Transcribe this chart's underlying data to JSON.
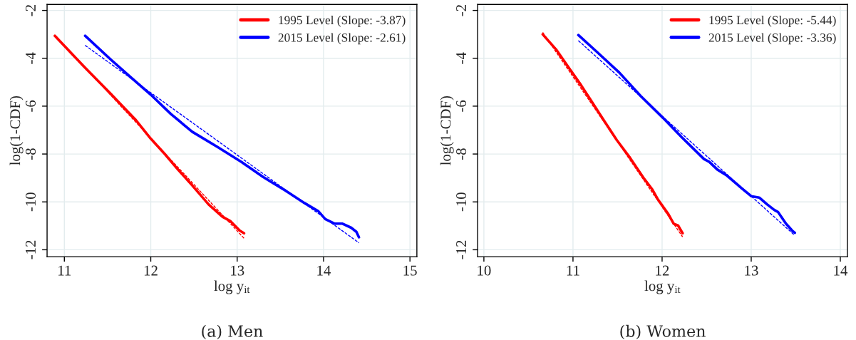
{
  "chart_data": [
    {
      "type": "line",
      "xlabel": "log y$_{it}$",
      "ylabel": "log(1-CDF)",
      "annotations": [
        "(a) Men"
      ],
      "xlim": [
        10.8,
        15.08
      ],
      "ylim": [
        -12.29,
        -1.75
      ],
      "xticks": [
        11,
        12,
        13,
        14,
        15
      ],
      "yticks": [
        -12,
        -10,
        -8,
        -6,
        -4,
        -2
      ],
      "grid": true,
      "legend": "top right",
      "line_style": "solid",
      "marker": "none",
      "series": [
        {
          "name": "1995 Level (Slope: -3.87)",
          "color": "#ff0000",
          "x": [
            10.89,
            11.22,
            11.53,
            11.82,
            12.0,
            12.16,
            12.32,
            12.48,
            12.67,
            12.83,
            12.92,
            13.03,
            13.08
          ],
          "values": [
            -3.06,
            -4.32,
            -5.46,
            -6.55,
            -7.36,
            -7.99,
            -8.67,
            -9.31,
            -10.11,
            -10.62,
            -10.8,
            -11.2,
            -11.31
          ]
        },
        {
          "name": "2015 Level (Slope: -2.61)",
          "color": "#0000ff",
          "x": [
            11.24,
            11.53,
            11.78,
            12.0,
            12.23,
            12.48,
            12.77,
            13.05,
            13.3,
            13.56,
            13.78,
            13.94,
            14.02,
            14.13,
            14.22,
            14.32,
            14.38,
            14.41
          ],
          "values": [
            -3.06,
            -4.03,
            -4.83,
            -5.52,
            -6.32,
            -7.07,
            -7.7,
            -8.33,
            -8.96,
            -9.53,
            -10.05,
            -10.39,
            -10.72,
            -10.91,
            -10.91,
            -11.08,
            -11.25,
            -11.48
          ]
        },
        {
          "color": "#ff0000",
          "line_style": "dashed",
          "x": [
            10.89,
            13.08
          ],
          "values": [
            -3.04,
            -11.52
          ]
        },
        {
          "color": "#0000ff",
          "line_style": "dashed",
          "x": [
            11.24,
            14.41
          ],
          "values": [
            -3.46,
            -11.71
          ]
        }
      ]
    },
    {
      "type": "line",
      "xlabel": "log y$_{it}$",
      "ylabel": "log(1-CDF)",
      "annotations": [
        "(b) Women"
      ],
      "xlim": [
        9.93,
        14.08
      ],
      "ylim": [
        -12.29,
        -1.75
      ],
      "xticks": [
        10,
        11,
        12,
        13,
        14
      ],
      "yticks": [
        -12,
        -10,
        -8,
        -6,
        -4,
        -2
      ],
      "grid": true,
      "legend": "top right",
      "line_style": "solid",
      "marker": "none",
      "series": [
        {
          "name": "1995 Level (Slope: -5.44)",
          "color": "#ff0000",
          "x": [
            10.66,
            10.81,
            10.96,
            11.09,
            11.21,
            11.33,
            11.49,
            11.64,
            11.79,
            11.89,
            11.95,
            12.07,
            12.13,
            12.18,
            12.23
          ],
          "values": [
            -3.0,
            -3.63,
            -4.43,
            -5.12,
            -5.81,
            -6.5,
            -7.41,
            -8.16,
            -8.99,
            -9.48,
            -9.88,
            -10.51,
            -10.91,
            -10.99,
            -11.31
          ]
        },
        {
          "name": "2015 Level (Slope: -3.36)",
          "color": "#0000ff",
          "x": [
            11.06,
            11.27,
            11.52,
            11.76,
            12.01,
            12.22,
            12.47,
            12.53,
            12.62,
            12.72,
            12.9,
            13.0,
            13.09,
            13.18,
            13.26,
            13.3,
            13.39,
            13.46,
            13.49
          ],
          "values": [
            -3.03,
            -3.74,
            -4.6,
            -5.58,
            -6.49,
            -7.3,
            -8.21,
            -8.33,
            -8.65,
            -8.88,
            -9.45,
            -9.76,
            -9.82,
            -10.11,
            -10.34,
            -10.42,
            -10.91,
            -11.2,
            -11.29
          ]
        },
        {
          "color": "#ff0000",
          "line_style": "dashed",
          "x": [
            10.66,
            12.23
          ],
          "values": [
            -2.92,
            -11.46
          ]
        },
        {
          "color": "#0000ff",
          "line_style": "dashed",
          "x": [
            11.06,
            13.48
          ],
          "values": [
            -3.26,
            -11.37
          ]
        }
      ]
    }
  ]
}
